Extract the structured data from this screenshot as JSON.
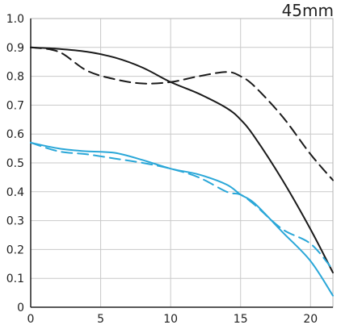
{
  "chart_data": {
    "type": "line",
    "title": "45mm",
    "xlabel": "",
    "ylabel": "",
    "xlim": [
      0,
      21.6
    ],
    "ylim": [
      0,
      1.0
    ],
    "x_ticks": [
      "0",
      "5",
      "10",
      "15",
      "20"
    ],
    "y_ticks": [
      "0",
      "0.1",
      "0.2",
      "0.3",
      "0.4",
      "0.5",
      "0.6",
      "0.7",
      "0.8",
      "0.9",
      "1.0"
    ],
    "grid": true,
    "legend": "none",
    "series": [
      {
        "color": "#1a1a1a",
        "style": "solid",
        "points": [
          [
            0,
            0.9
          ],
          [
            2,
            0.895
          ],
          [
            4,
            0.885
          ],
          [
            6,
            0.865
          ],
          [
            8,
            0.83
          ],
          [
            10,
            0.78
          ],
          [
            12,
            0.74
          ],
          [
            14,
            0.69
          ],
          [
            15,
            0.65
          ],
          [
            16,
            0.59
          ],
          [
            18,
            0.44
          ],
          [
            20,
            0.27
          ],
          [
            21.6,
            0.12
          ]
        ]
      },
      {
        "color": "#1a1a1a",
        "style": "dashed",
        "points": [
          [
            0,
            0.9
          ],
          [
            2,
            0.885
          ],
          [
            4,
            0.82
          ],
          [
            6,
            0.79
          ],
          [
            8,
            0.775
          ],
          [
            10,
            0.78
          ],
          [
            12,
            0.8
          ],
          [
            14,
            0.815
          ],
          [
            15,
            0.8
          ],
          [
            16,
            0.765
          ],
          [
            18,
            0.66
          ],
          [
            20,
            0.53
          ],
          [
            21.6,
            0.44
          ]
        ]
      },
      {
        "color": "#2aa7d8",
        "style": "solid",
        "points": [
          [
            0,
            0.57
          ],
          [
            2,
            0.55
          ],
          [
            4,
            0.54
          ],
          [
            6,
            0.535
          ],
          [
            8,
            0.51
          ],
          [
            10,
            0.48
          ],
          [
            12,
            0.46
          ],
          [
            14,
            0.425
          ],
          [
            15,
            0.39
          ],
          [
            16,
            0.36
          ],
          [
            18,
            0.26
          ],
          [
            20,
            0.16
          ],
          [
            21.6,
            0.04
          ]
        ]
      },
      {
        "color": "#2aa7d8",
        "style": "dashed",
        "points": [
          [
            0,
            0.57
          ],
          [
            2,
            0.54
          ],
          [
            4,
            0.53
          ],
          [
            6,
            0.515
          ],
          [
            8,
            0.5
          ],
          [
            10,
            0.48
          ],
          [
            12,
            0.45
          ],
          [
            14,
            0.4
          ],
          [
            15,
            0.39
          ],
          [
            16,
            0.355
          ],
          [
            18,
            0.27
          ],
          [
            20,
            0.22
          ],
          [
            21.6,
            0.13
          ]
        ]
      }
    ]
  }
}
